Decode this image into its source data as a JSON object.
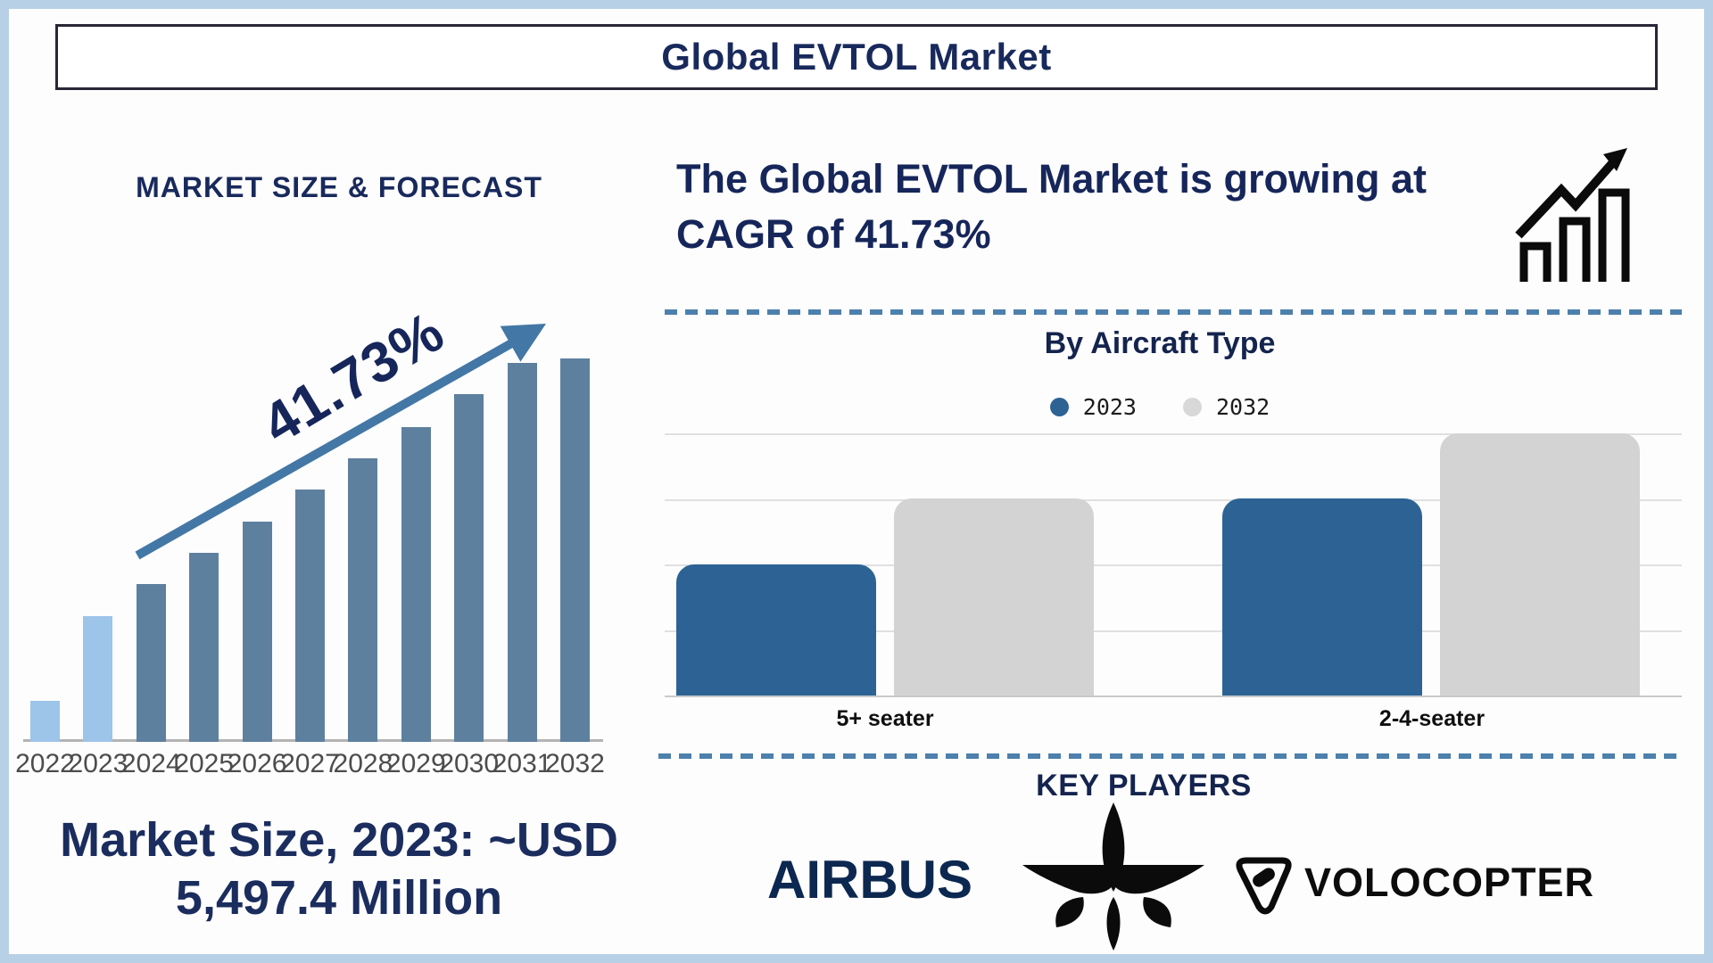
{
  "title": "Global EVTOL Market",
  "colors": {
    "navy": "#16265a",
    "frame_blue": "#b7d0e6",
    "bar_steel": "#5e809f",
    "bar_light": "#9dc4e9",
    "arrow_blue": "#4377a5",
    "right_blue": "#2c6394",
    "right_gray": "#d3d3d3",
    "legend_gray": "#d8d8d8",
    "dashed_blue": "#4d80ac",
    "airbus_navy": "#0c2850",
    "logo_black": "#0b0b0b"
  },
  "left_panel": {
    "heading": "MARKET SIZE & FORECAST",
    "growth_label": "41.73%",
    "caption_line1": "Market Size, 2023: ~USD",
    "caption_line2": "5,497.4 Million",
    "highlight_count": 2
  },
  "right_panel": {
    "cagr_line1": "The Global EVTOL Market is growing at",
    "cagr_line2": "CAGR of 41.73%",
    "aircraft_heading": "By Aircraft Type",
    "legend": [
      {
        "label": "2023",
        "color": "#2c6394"
      },
      {
        "label": "2032",
        "color": "#d8d8d8"
      }
    ],
    "key_players_heading": "KEY PLAYERS",
    "players": [
      {
        "name": "Airbus",
        "display": "AIRBUS",
        "kind": "wordmark"
      },
      {
        "name": "Lilium",
        "kind": "flower-logo"
      },
      {
        "name": "Volocopter",
        "display": "VOLOCOPTER",
        "kind": "icon-and-wordmark"
      }
    ]
  },
  "chart_data": [
    {
      "type": "bar",
      "title": "MARKET SIZE & FORECAST",
      "categories": [
        "2022",
        "2023",
        "2024",
        "2025",
        "2026",
        "2027",
        "2028",
        "2029",
        "2030",
        "2031",
        "2032"
      ],
      "values_relative": [
        0.107,
        0.328,
        0.412,
        0.493,
        0.574,
        0.658,
        0.74,
        0.821,
        0.907,
        0.988,
        1.0
      ],
      "highlighted_categories": [
        "2022",
        "2023"
      ],
      "annotations": [
        "41.73% growth arrow",
        "Market Size, 2023: ~USD 5,497.4 Million"
      ],
      "xlabel": "",
      "ylabel": "",
      "y_axis_labels": "none",
      "grid": false
    },
    {
      "type": "bar",
      "title": "By Aircraft Type",
      "categories": [
        "5+ seater",
        "2-4-seater"
      ],
      "series": [
        {
          "name": "2023",
          "values_gridline_units": [
            2,
            3
          ]
        },
        {
          "name": "2032",
          "values_gridline_units": [
            3,
            4
          ]
        }
      ],
      "legend_position": "top",
      "grid": true,
      "y_axis_labels": "none"
    }
  ]
}
